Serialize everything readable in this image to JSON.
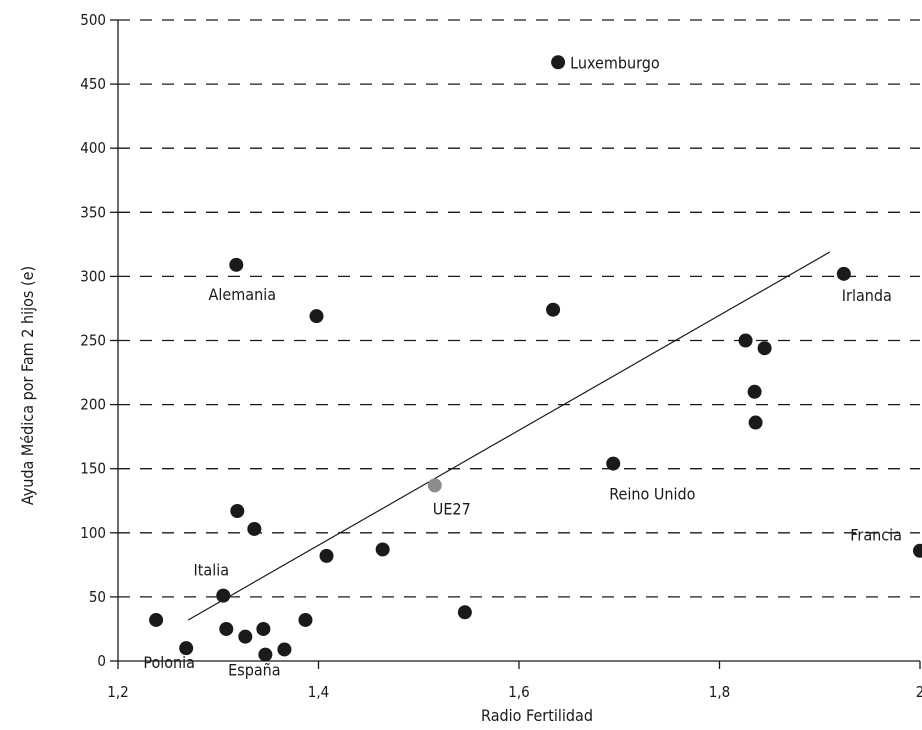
{
  "chart_data": {
    "type": "scatter",
    "title": "",
    "xlabel": "Radio Fertilidad",
    "ylabel": "Ayuda Médica por Fam 2 hijos (e)",
    "xlim": [
      1.2,
      2.0
    ],
    "ylim": [
      0,
      500
    ],
    "x_ticks": [
      1.2,
      1.4,
      1.6,
      1.8,
      2.0
    ],
    "x_tick_labels": [
      "1,2",
      "1,4",
      "1,6",
      "1,8",
      "2"
    ],
    "y_ticks": [
      0,
      50,
      100,
      150,
      200,
      250,
      300,
      350,
      400,
      450,
      500
    ],
    "y_tick_labels": [
      "0",
      "50",
      "100",
      "150",
      "200",
      "250",
      "300",
      "350",
      "400",
      "450",
      "500"
    ],
    "grid": "horizontal-dashed",
    "colors": {
      "point": "#1a1a1a",
      "highlight": "#8c8c8c",
      "trend": "#1a1a1a",
      "grid": "#1a1a1a"
    },
    "points": [
      {
        "x": 1.639,
        "y": 467,
        "label": "Luxemburgo"
      },
      {
        "x": 1.318,
        "y": 309,
        "label": "Alemania"
      },
      {
        "x": 1.398,
        "y": 269,
        "label": ""
      },
      {
        "x": 1.634,
        "y": 274,
        "label": ""
      },
      {
        "x": 1.924,
        "y": 302,
        "label": "Irlanda"
      },
      {
        "x": 1.826,
        "y": 250,
        "label": ""
      },
      {
        "x": 1.845,
        "y": 244,
        "label": ""
      },
      {
        "x": 1.835,
        "y": 210,
        "label": ""
      },
      {
        "x": 1.836,
        "y": 186,
        "label": ""
      },
      {
        "x": 1.694,
        "y": 154,
        "label": "Reino Unido"
      },
      {
        "x": 1.516,
        "y": 137,
        "label": "UE27",
        "highlight": true
      },
      {
        "x": 1.319,
        "y": 117,
        "label": ""
      },
      {
        "x": 1.336,
        "y": 103,
        "label": ""
      },
      {
        "x": 1.408,
        "y": 82,
        "label": ""
      },
      {
        "x": 1.464,
        "y": 87,
        "label": ""
      },
      {
        "x": 2.0,
        "y": 86,
        "label": "Francia"
      },
      {
        "x": 1.305,
        "y": 51,
        "label": "Italia"
      },
      {
        "x": 1.546,
        "y": 38,
        "label": ""
      },
      {
        "x": 1.238,
        "y": 32,
        "label": ""
      },
      {
        "x": 1.387,
        "y": 32,
        "label": ""
      },
      {
        "x": 1.308,
        "y": 25,
        "label": ""
      },
      {
        "x": 1.345,
        "y": 25,
        "label": ""
      },
      {
        "x": 1.327,
        "y": 19,
        "label": ""
      },
      {
        "x": 1.268,
        "y": 10,
        "label": "Polonia"
      },
      {
        "x": 1.366,
        "y": 9,
        "label": ""
      },
      {
        "x": 1.347,
        "y": 5,
        "label": "España"
      }
    ],
    "trendline": {
      "x1": 1.27,
      "y1": 32,
      "x2": 1.91,
      "y2": 319
    }
  }
}
